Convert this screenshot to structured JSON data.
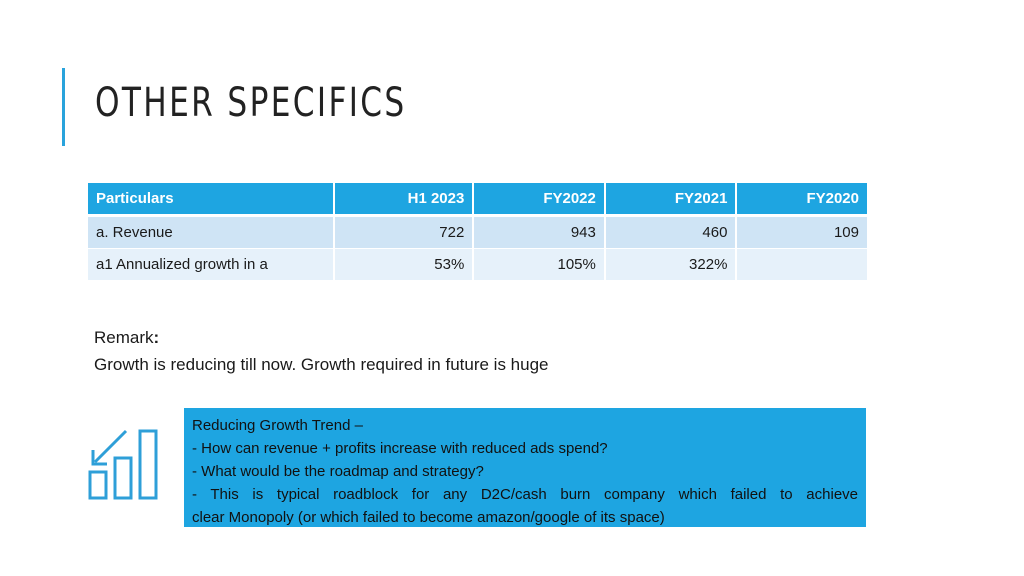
{
  "slide": {
    "title": "OTHER SPECIFICS"
  },
  "table": {
    "headers": [
      "Particulars",
      "H1 2023",
      "FY2022",
      "FY2021",
      "FY2020"
    ],
    "rows": [
      [
        "a.  Revenue",
        "722",
        "943",
        "460",
        "109"
      ],
      [
        "a1 Annualized growth in a",
        "53%",
        "105%",
        "322%",
        ""
      ]
    ]
  },
  "remark": {
    "label": "Remark",
    "colon": ":",
    "text": "Growth is reducing till now.  Growth required in future is huge"
  },
  "callout": {
    "lines": [
      "Reducing Growth Trend –",
      "- How can revenue + profits increase with reduced ads spend?",
      "- What would be the roadmap and strategy?",
      "- This is typical roadblock for any D2C/cash burn company which failed to achieve",
      "clear Monopoly (or which failed to become amazon/google of its space)"
    ]
  },
  "colors": {
    "accent": "#29a3dc",
    "header_bg": "#1ea5e1",
    "row_dark": "#cfe4f5",
    "row_light": "#e6f1fa",
    "icon": "#2e9fd8"
  },
  "icons": {
    "chart": "declining-bar-chart-icon"
  }
}
